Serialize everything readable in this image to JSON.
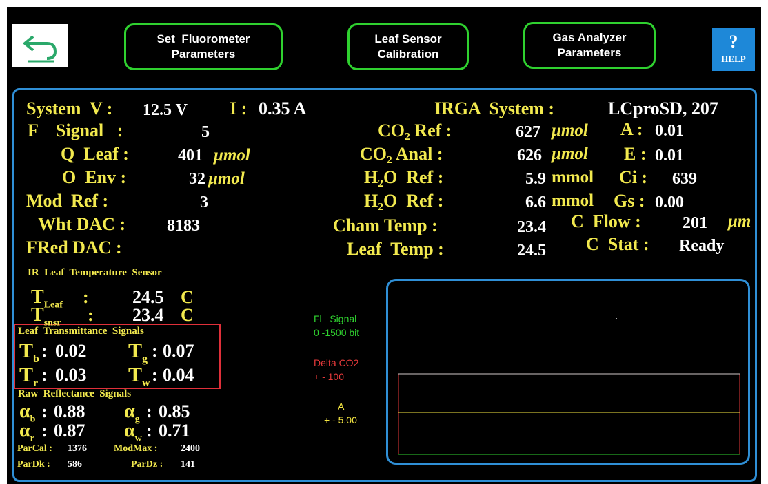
{
  "toolbar": {
    "buttons": [
      {
        "lines": [
          "Set  Fluorometer",
          "Parameters"
        ]
      },
      {
        "lines": [
          "Leaf Sensor",
          "Calibration"
        ]
      },
      {
        "lines": [
          "Gas Analyzer",
          "Parameters"
        ]
      }
    ],
    "help": {
      "icon": "?",
      "label": "HELP"
    }
  },
  "system": {
    "v_label": "System  V :",
    "v_value": "12.5 V",
    "i_label": "I :",
    "i_value": "0.35 A"
  },
  "irga": {
    "label": "IRGA  System :",
    "value": "LCproSD, 207"
  },
  "left_rows": [
    {
      "label": "F    Signal   :",
      "value": "5"
    },
    {
      "label": "Q  Leaf :",
      "value": "401",
      "unit": "μmol"
    },
    {
      "label": "O  Env :",
      "value": "32",
      "unit": "μmol"
    },
    {
      "label": "Mod  Ref :",
      "value": "3"
    },
    {
      "label": "Wht DAC :",
      "value": "8183"
    },
    {
      "label": "FRed DAC :"
    }
  ],
  "middle_rows": [
    {
      "label": "CO₂ Ref :",
      "value": "627",
      "unit": "μmol"
    },
    {
      "label": "CO₂ Anal :",
      "value": "626",
      "unit": "μmol"
    },
    {
      "label": "H₂O  Ref :",
      "value": "5.9",
      "unit": "mmol"
    },
    {
      "label": "H₂O  Ref :",
      "value": "6.6",
      "unit": "mmol"
    },
    {
      "label": "Cham Temp :",
      "value": "23.4"
    },
    {
      "label": "Leaf  Temp :",
      "value": "24.5"
    }
  ],
  "right_rows": [
    {
      "label": "A :",
      "value": "0.01"
    },
    {
      "label": "E :",
      "value": "0.01"
    },
    {
      "label": "Ci :",
      "value": "639"
    },
    {
      "label": "Gs :",
      "value": "0.00"
    },
    {
      "label": "C  Flow :",
      "value": "201",
      "unit": "μm"
    },
    {
      "label": "C  Stat :",
      "value": "Ready"
    }
  ],
  "ir_sensor": {
    "title": "IR  Leaf  Temperature  Sensor",
    "rows": [
      {
        "symbol": "T",
        "sub": "Leaf",
        "sep": ":",
        "value": "24.5",
        "unit": "C"
      },
      {
        "symbol": "T",
        "sub": "snsr",
        "sep": ":",
        "value": "23.4",
        "unit": "C"
      }
    ]
  },
  "transmittance": {
    "title": "Leaf  Transmittance  Signals",
    "items": [
      {
        "symbol": "T",
        "sub": "b",
        "sep": ":",
        "value": "0.02"
      },
      {
        "symbol": "T",
        "sub": "g",
        "sep": ":",
        "value": "0.07"
      },
      {
        "symbol": "T",
        "sub": "r",
        "sep": ":",
        "value": "0.03"
      },
      {
        "symbol": "T",
        "sub": "w",
        "sep": ":",
        "value": "0.04"
      }
    ]
  },
  "reflectance": {
    "title": "Raw  Reflectance  Signals",
    "items": [
      {
        "symbol": "α",
        "sub": "b",
        "sep": ":",
        "value": "0.88"
      },
      {
        "symbol": "α",
        "sub": "g",
        "sep": ":",
        "value": "0.85"
      },
      {
        "symbol": "α",
        "sub": "r",
        "sep": ":",
        "value": "0.87"
      },
      {
        "symbol": "α",
        "sub": "w",
        "sep": ":",
        "value": "0.71"
      }
    ]
  },
  "footer": [
    {
      "label": "ParCal :",
      "value": "1376"
    },
    {
      "label": "ModMax :",
      "value": "2400"
    },
    {
      "label": "ParDk :",
      "value": "586"
    },
    {
      "label": "ParDz :",
      "value": "141"
    }
  ],
  "graph_legend": [
    {
      "name": "Fl   Signal",
      "range": "0 -1500 bit",
      "color": "#2fd12f"
    },
    {
      "name": "Delta CO2",
      "range": "+ - 100",
      "color": "#e5393a"
    },
    {
      "name": "A",
      "range": "+ - 5.00",
      "color": "#f5e642"
    }
  ]
}
